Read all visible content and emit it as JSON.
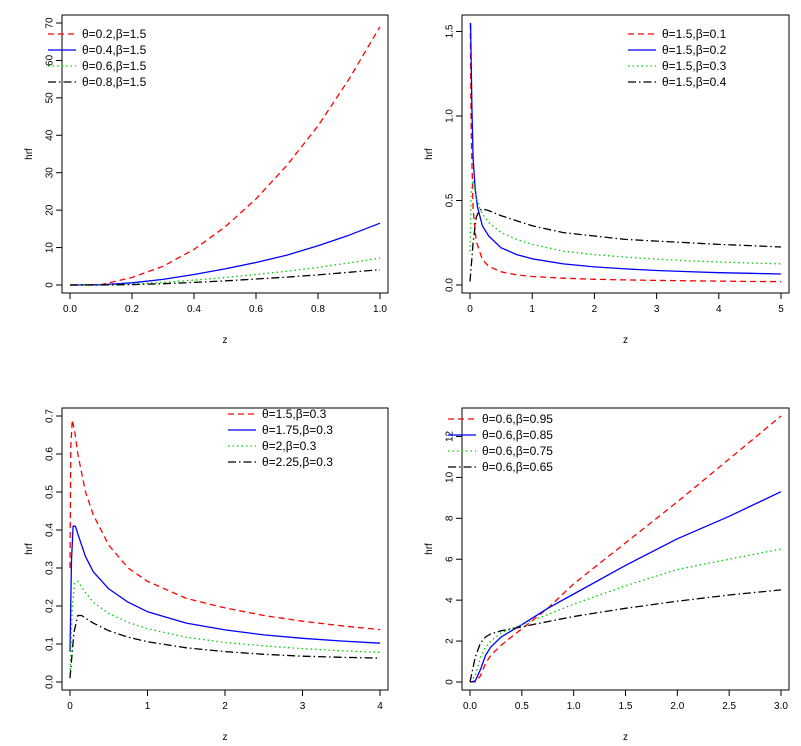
{
  "chart_data": [
    {
      "type": "line",
      "title": "",
      "xlabel": "z",
      "ylabel": "hrf",
      "xlim": [
        0,
        1
      ],
      "ylim": [
        0,
        70
      ],
      "xticks": [
        "0.0",
        "0.2",
        "0.4",
        "0.6",
        "0.8",
        "1.0"
      ],
      "xtick_values": [
        0,
        0.2,
        0.4,
        0.6,
        0.8,
        1.0
      ],
      "yticks": [
        "0",
        "10",
        "20",
        "30",
        "40",
        "50",
        "60",
        "70"
      ],
      "ytick_values": [
        0,
        10,
        20,
        30,
        40,
        50,
        60,
        70
      ],
      "legend_position": "top-left",
      "legend": [
        "θ=0.2,β=1.5",
        "θ=0.4,β=1.5",
        "θ=0.6,β=1.5",
        "θ=0.8,β=1.5"
      ],
      "series": [
        {
          "name": "θ=0.2,β=1.5",
          "color": "#ff0000",
          "dash": "dashed",
          "x": [
            0,
            0.1,
            0.2,
            0.3,
            0.4,
            0.5,
            0.6,
            0.7,
            0.8,
            0.9,
            1.0
          ],
          "y": [
            0,
            0.1,
            2.0,
            5.0,
            9.5,
            15.5,
            23.0,
            32.0,
            42.5,
            55.0,
            69.0
          ]
        },
        {
          "name": "θ=0.4,β=1.5",
          "color": "#0000ff",
          "dash": "solid",
          "x": [
            0,
            0.1,
            0.2,
            0.3,
            0.4,
            0.5,
            0.6,
            0.7,
            0.8,
            0.9,
            1.0
          ],
          "y": [
            0,
            0.05,
            0.6,
            1.5,
            2.8,
            4.3,
            6.0,
            8.0,
            10.5,
            13.3,
            16.5
          ]
        },
        {
          "name": "θ=0.6,β=1.5",
          "color": "#00cc00",
          "dash": "dotted",
          "x": [
            0,
            0.1,
            0.2,
            0.3,
            0.4,
            0.5,
            0.6,
            0.7,
            0.8,
            0.9,
            1.0
          ],
          "y": [
            0,
            0.02,
            0.25,
            0.7,
            1.3,
            2.0,
            2.8,
            3.7,
            4.7,
            5.9,
            7.2
          ]
        },
        {
          "name": "θ=0.8,β=1.5",
          "color": "#000000",
          "dash": "dotdash",
          "x": [
            0,
            0.1,
            0.2,
            0.3,
            0.4,
            0.5,
            0.6,
            0.7,
            0.8,
            0.9,
            1.0
          ],
          "y": [
            0,
            0.01,
            0.1,
            0.35,
            0.7,
            1.1,
            1.6,
            2.1,
            2.7,
            3.4,
            4.1
          ]
        }
      ]
    },
    {
      "type": "line",
      "title": "",
      "xlabel": "z",
      "ylabel": "hrf",
      "xlim": [
        0,
        5
      ],
      "ylim": [
        0,
        1.55
      ],
      "xticks": [
        "0",
        "1",
        "2",
        "3",
        "4",
        "5"
      ],
      "xtick_values": [
        0,
        1,
        2,
        3,
        4,
        5
      ],
      "yticks": [
        "0.0",
        "0.5",
        "1.0",
        "1.5"
      ],
      "ytick_values": [
        0,
        0.5,
        1.0,
        1.5
      ],
      "legend_position": "top-right",
      "legend": [
        "θ=1.5,β=0.1",
        "θ=1.5,β=0.2",
        "θ=1.5,β=0.3",
        "θ=1.5,β=0.4"
      ],
      "series": [
        {
          "name": "θ=1.5,β=0.1",
          "color": "#ff0000",
          "dash": "dashed",
          "x": [
            0.005,
            0.02,
            0.05,
            0.1,
            0.2,
            0.3,
            0.5,
            0.75,
            1,
            1.5,
            2,
            2.5,
            3,
            3.5,
            4,
            4.5,
            5
          ],
          "y": [
            1.55,
            0.9,
            0.45,
            0.26,
            0.15,
            0.11,
            0.078,
            0.06,
            0.05,
            0.04,
            0.034,
            0.03,
            0.027,
            0.025,
            0.023,
            0.021,
            0.02
          ]
        },
        {
          "name": "θ=1.5,β=0.2",
          "color": "#0000ff",
          "dash": "solid",
          "x": [
            0.01,
            0.03,
            0.05,
            0.08,
            0.12,
            0.2,
            0.3,
            0.5,
            0.75,
            1,
            1.5,
            2,
            2.5,
            3,
            3.5,
            4,
            4.5,
            5
          ],
          "y": [
            1.55,
            1.05,
            0.75,
            0.58,
            0.46,
            0.35,
            0.29,
            0.22,
            0.18,
            0.155,
            0.125,
            0.107,
            0.095,
            0.086,
            0.079,
            0.073,
            0.069,
            0.065
          ]
        },
        {
          "name": "θ=1.5,β=0.3",
          "color": "#00cc00",
          "dash": "dotted",
          "x": [
            0.0,
            0.02,
            0.05,
            0.1,
            0.15,
            0.2,
            0.3,
            0.5,
            0.75,
            1,
            1.5,
            2,
            2.5,
            3,
            3.5,
            4,
            4.5,
            5
          ],
          "y": [
            0.2,
            0.55,
            0.62,
            0.52,
            0.46,
            0.42,
            0.37,
            0.31,
            0.27,
            0.24,
            0.2,
            0.18,
            0.165,
            0.153,
            0.143,
            0.136,
            0.13,
            0.125
          ]
        },
        {
          "name": "θ=1.5,β=0.4",
          "color": "#000000",
          "dash": "dotdash",
          "x": [
            0.0,
            0.05,
            0.1,
            0.15,
            0.2,
            0.3,
            0.5,
            0.75,
            1,
            1.5,
            2,
            2.5,
            3,
            3.5,
            4,
            4.5,
            5
          ],
          "y": [
            0.02,
            0.25,
            0.4,
            0.44,
            0.45,
            0.44,
            0.41,
            0.38,
            0.35,
            0.31,
            0.29,
            0.27,
            0.26,
            0.25,
            0.24,
            0.233,
            0.225
          ]
        }
      ]
    },
    {
      "type": "line",
      "title": "",
      "xlabel": "z",
      "ylabel": "hrf",
      "xlim": [
        0,
        4
      ],
      "ylim": [
        0,
        0.7
      ],
      "xticks": [
        "0",
        "1",
        "2",
        "3",
        "4"
      ],
      "xtick_values": [
        0,
        1,
        2,
        3,
        4
      ],
      "yticks": [
        "0.0",
        "0.1",
        "0.2",
        "0.3",
        "0.4",
        "0.5",
        "0.6",
        "0.7"
      ],
      "ytick_values": [
        0,
        0.1,
        0.2,
        0.3,
        0.4,
        0.5,
        0.6,
        0.7
      ],
      "legend_position": "top-right",
      "legend": [
        "θ=1.5,β=0.3",
        "θ=1.75,β=0.3",
        "θ=2,β=0.3",
        "θ=2.25,β=0.3"
      ],
      "series": [
        {
          "name": "θ=1.5,β=0.3",
          "color": "#ff0000",
          "dash": "dashed",
          "x": [
            0.0,
            0.01,
            0.03,
            0.06,
            0.1,
            0.2,
            0.3,
            0.5,
            0.75,
            1,
            1.5,
            2,
            2.5,
            3,
            3.5,
            4
          ],
          "y": [
            0.3,
            0.62,
            0.69,
            0.66,
            0.6,
            0.5,
            0.44,
            0.36,
            0.3,
            0.265,
            0.22,
            0.195,
            0.175,
            0.16,
            0.148,
            0.138
          ]
        },
        {
          "name": "θ=1.75,β=0.3",
          "color": "#0000ff",
          "dash": "solid",
          "x": [
            0.0,
            0.02,
            0.04,
            0.07,
            0.1,
            0.2,
            0.3,
            0.5,
            0.75,
            1,
            1.5,
            2,
            2.5,
            3,
            3.5,
            4
          ],
          "y": [
            0.08,
            0.32,
            0.41,
            0.41,
            0.39,
            0.33,
            0.29,
            0.245,
            0.21,
            0.185,
            0.155,
            0.137,
            0.124,
            0.115,
            0.108,
            0.102
          ]
        },
        {
          "name": "θ=2,β=0.3",
          "color": "#00cc00",
          "dash": "dotted",
          "x": [
            0.0,
            0.03,
            0.06,
            0.1,
            0.15,
            0.2,
            0.3,
            0.5,
            0.75,
            1,
            1.5,
            2,
            2.5,
            3,
            3.5,
            4
          ],
          "y": [
            0.02,
            0.2,
            0.26,
            0.265,
            0.25,
            0.235,
            0.21,
            0.18,
            0.157,
            0.14,
            0.118,
            0.104,
            0.095,
            0.088,
            0.082,
            0.078
          ]
        },
        {
          "name": "θ=2.25,β=0.3",
          "color": "#000000",
          "dash": "dotdash",
          "x": [
            0.0,
            0.05,
            0.1,
            0.15,
            0.2,
            0.3,
            0.5,
            0.75,
            1,
            1.5,
            2,
            2.5,
            3,
            3.5,
            4
          ],
          "y": [
            0.01,
            0.13,
            0.175,
            0.175,
            0.168,
            0.155,
            0.135,
            0.118,
            0.106,
            0.09,
            0.08,
            0.073,
            0.068,
            0.065,
            0.063
          ]
        }
      ]
    },
    {
      "type": "line",
      "title": "",
      "xlabel": "z",
      "ylabel": "hrf",
      "xlim": [
        0,
        3
      ],
      "ylim": [
        0,
        13
      ],
      "xticks": [
        "0.0",
        "0.5",
        "1.0",
        "1.5",
        "2.0",
        "2.5",
        "3.0"
      ],
      "xtick_values": [
        0,
        0.5,
        1.0,
        1.5,
        2.0,
        2.5,
        3.0
      ],
      "yticks": [
        "0",
        "2",
        "4",
        "6",
        "8",
        "10",
        "12"
      ],
      "ytick_values": [
        0,
        2,
        4,
        6,
        8,
        10,
        12
      ],
      "legend_position": "top-left",
      "legend": [
        "θ=0.6,β=0.95",
        "θ=0.6,β=0.85",
        "θ=0.6,β=0.75",
        "θ=0.6,β=0.65"
      ],
      "series": [
        {
          "name": "θ=0.6,β=0.95",
          "color": "#ff0000",
          "dash": "dashed",
          "x": [
            0.0,
            0.05,
            0.1,
            0.15,
            0.2,
            0.3,
            0.5,
            0.75,
            1,
            1.5,
            2,
            2.5,
            3
          ],
          "y": [
            0,
            0.0,
            0.3,
            0.9,
            1.3,
            1.8,
            2.6,
            3.6,
            4.8,
            6.8,
            8.8,
            10.9,
            13.0
          ]
        },
        {
          "name": "θ=0.6,β=0.85",
          "color": "#0000ff",
          "dash": "solid",
          "x": [
            0.0,
            0.05,
            0.1,
            0.15,
            0.2,
            0.3,
            0.5,
            0.75,
            1,
            1.5,
            2,
            2.5,
            3
          ],
          "y": [
            0,
            0.05,
            0.6,
            1.3,
            1.7,
            2.2,
            2.8,
            3.6,
            4.3,
            5.7,
            7.0,
            8.1,
            9.3
          ]
        },
        {
          "name": "θ=0.6,β=0.75",
          "color": "#00cc00",
          "dash": "dotted",
          "x": [
            0.0,
            0.05,
            0.1,
            0.15,
            0.2,
            0.3,
            0.5,
            0.75,
            1,
            1.5,
            2,
            2.5,
            3
          ],
          "y": [
            0,
            0.3,
            1.2,
            1.7,
            2.0,
            2.4,
            2.8,
            3.3,
            3.8,
            4.7,
            5.5,
            6.0,
            6.5
          ]
        },
        {
          "name": "θ=0.6,β=0.65",
          "color": "#000000",
          "dash": "dotdash",
          "x": [
            0.0,
            0.05,
            0.1,
            0.15,
            0.2,
            0.3,
            0.5,
            0.75,
            1,
            1.5,
            2,
            2.5,
            3
          ],
          "y": [
            0,
            1.2,
            1.9,
            2.2,
            2.35,
            2.5,
            2.7,
            2.95,
            3.2,
            3.6,
            3.95,
            4.25,
            4.5
          ]
        }
      ]
    }
  ]
}
